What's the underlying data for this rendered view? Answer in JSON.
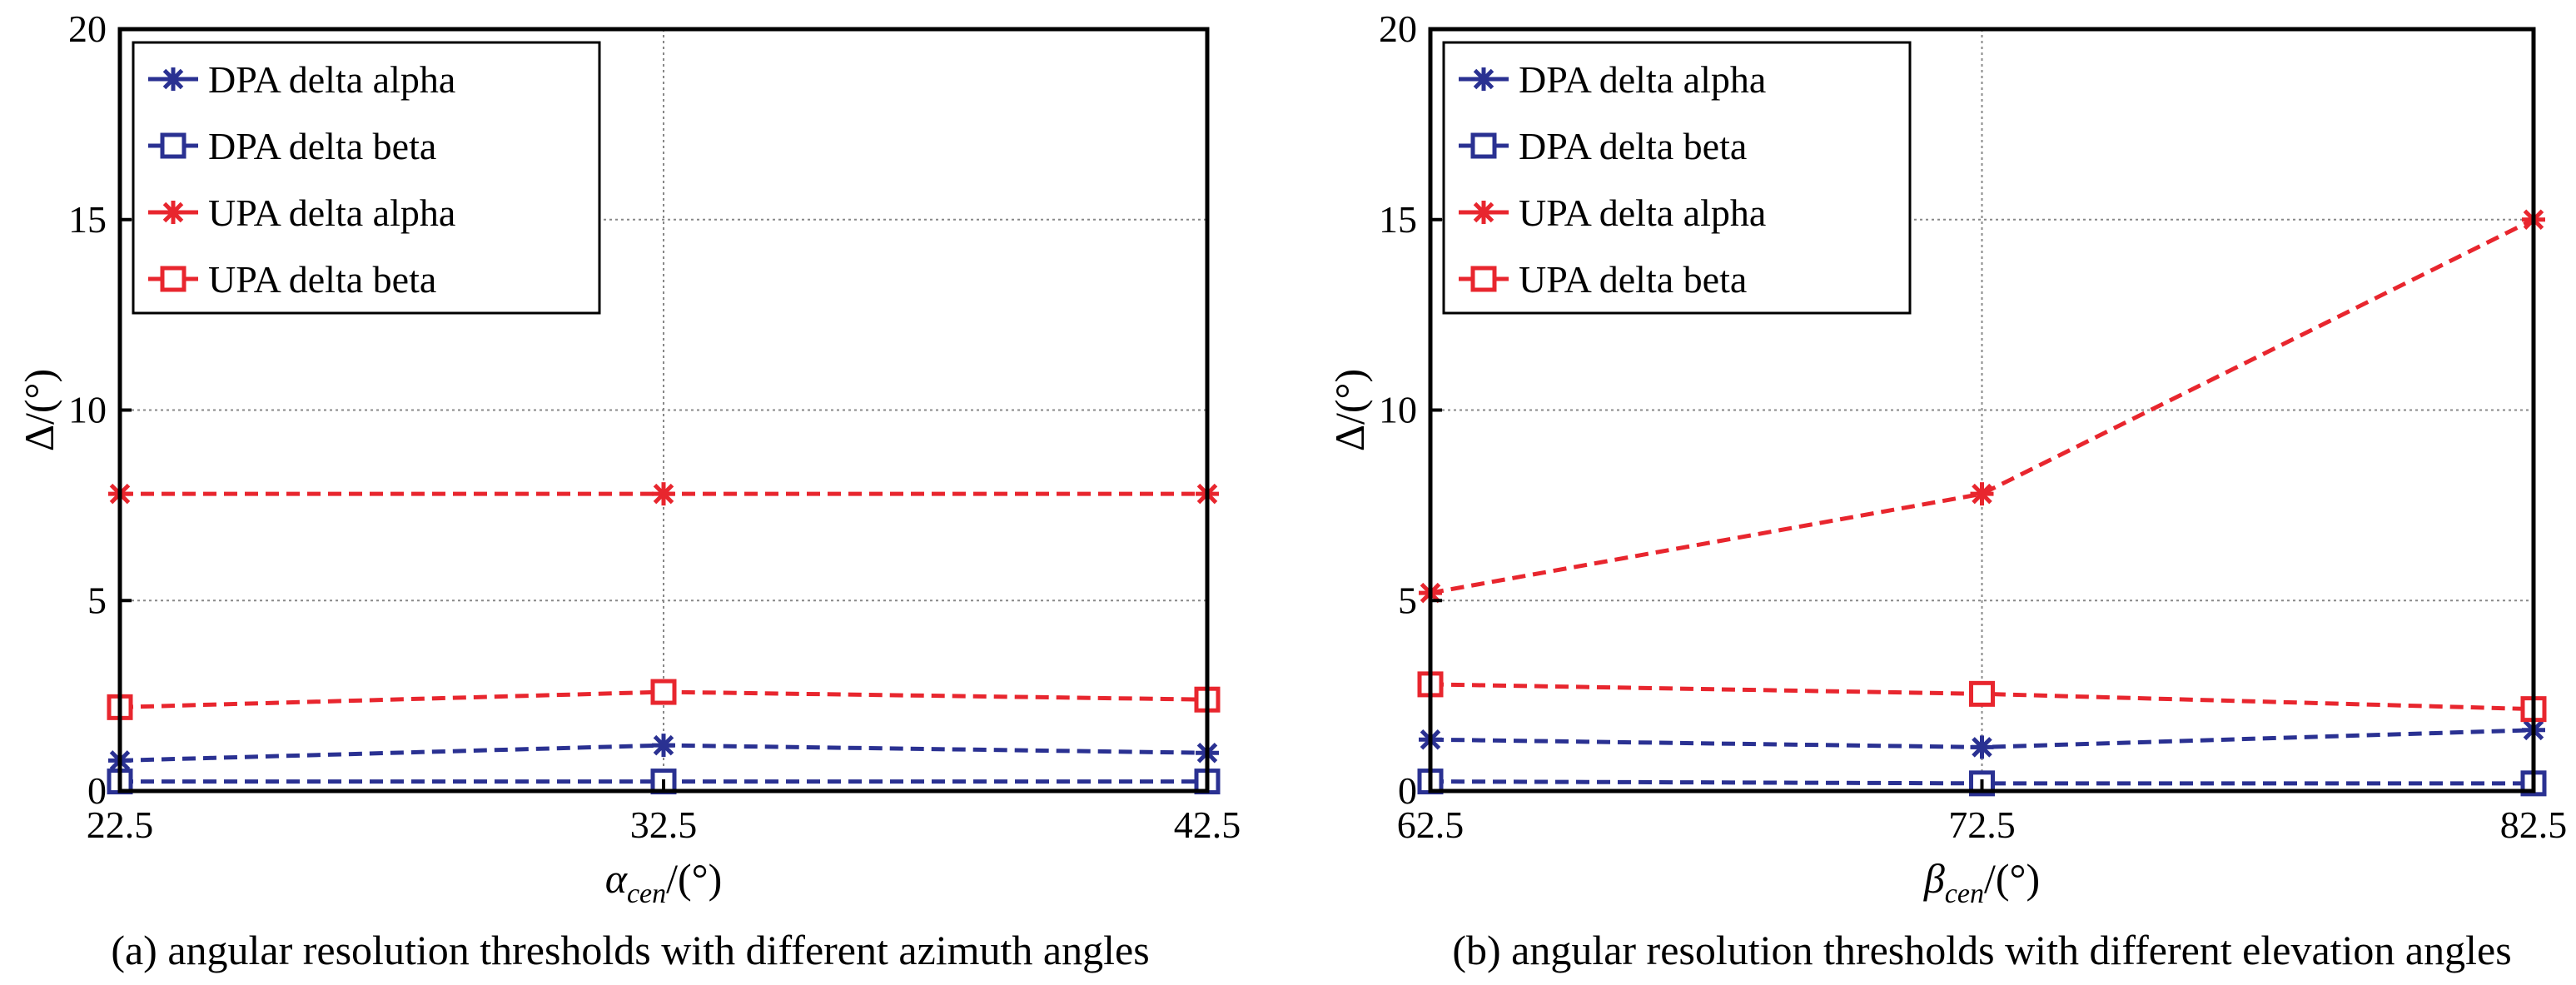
{
  "colors": {
    "dpa": "#2a3192",
    "upa": "#e8262e",
    "grid": "#888888"
  },
  "legend_labels": [
    "DPA delta alpha",
    "DPA delta beta",
    "UPA delta alpha",
    "UPA delta beta"
  ],
  "chart_data": [
    {
      "type": "line",
      "caption": "(a) angular resolution thresholds with different azimuth angles",
      "ylabel": "Δ/(°)",
      "xlabel_symbol": "α",
      "xlabel_sub": "cen",
      "xlabel_unit": "/(°)",
      "x": [
        "22.5",
        "32.5",
        "42.5"
      ],
      "xlim": [
        22.5,
        42.5
      ],
      "ylim": [
        0,
        20
      ],
      "yticks": [
        "0",
        "5",
        "10",
        "15",
        "20"
      ],
      "grid": true,
      "legend_position": "top-left",
      "series": [
        {
          "name": "DPA delta alpha",
          "marker": "star",
          "color_key": "dpa",
          "values": [
            0.8,
            1.2,
            1.0
          ]
        },
        {
          "name": "DPA delta beta",
          "marker": "square",
          "color_key": "dpa",
          "values": [
            0.25,
            0.25,
            0.25
          ]
        },
        {
          "name": "UPA delta alpha",
          "marker": "star",
          "color_key": "upa",
          "values": [
            7.8,
            7.8,
            7.8
          ]
        },
        {
          "name": "UPA delta beta",
          "marker": "square",
          "color_key": "upa",
          "values": [
            2.2,
            2.6,
            2.4
          ]
        }
      ]
    },
    {
      "type": "line",
      "caption": "(b) angular resolution thresholds with different elevation angles",
      "ylabel": "Δ/(°)",
      "xlabel_symbol": "β",
      "xlabel_sub": "cen",
      "xlabel_unit": "/(°)",
      "x": [
        "62.5",
        "72.5",
        "82.5"
      ],
      "xlim": [
        62.5,
        82.5
      ],
      "ylim": [
        0,
        20
      ],
      "yticks": [
        "0",
        "5",
        "10",
        "15",
        "20"
      ],
      "grid": true,
      "legend_position": "top-left",
      "series": [
        {
          "name": "DPA delta alpha",
          "marker": "star",
          "color_key": "dpa",
          "values": [
            1.35,
            1.15,
            1.6
          ]
        },
        {
          "name": "DPA delta beta",
          "marker": "square",
          "color_key": "dpa",
          "values": [
            0.25,
            0.2,
            0.2
          ]
        },
        {
          "name": "UPA delta alpha",
          "marker": "star",
          "color_key": "upa",
          "values": [
            5.2,
            7.8,
            15.0
          ]
        },
        {
          "name": "UPA delta beta",
          "marker": "square",
          "color_key": "upa",
          "values": [
            2.8,
            2.55,
            2.15
          ]
        }
      ]
    }
  ]
}
